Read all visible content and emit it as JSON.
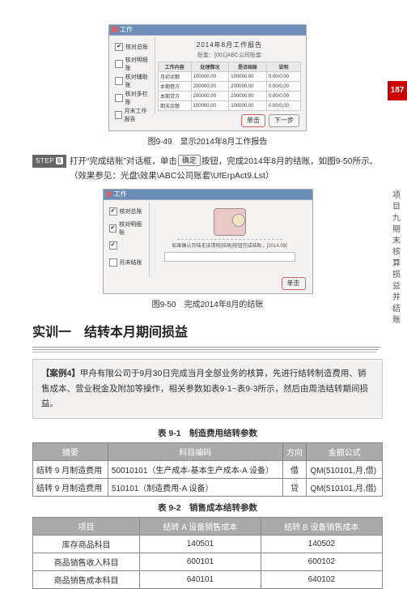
{
  "pageNumber": "187",
  "sideLabel": "项目九　期末核算损益并结账",
  "shot1": {
    "title": "工作",
    "header": "2014年8月工作报告",
    "sub": "账套：[001]ABC公司账套",
    "sidebar": [
      "核对总账",
      "核对明细账",
      "核对辅助账",
      "核对多栏账",
      "月末工作报告"
    ],
    "thead": [
      "工作内容",
      "处理情况",
      "是否结账",
      "说明"
    ],
    "rows": [
      [
        "月初余额",
        "100000.00",
        "100000.00",
        "0.00/0.00"
      ],
      [
        "本期借方",
        "200000.00",
        "200000.00",
        "0.00/0.00"
      ],
      [
        "本期贷方",
        "200000.00",
        "200000.00",
        "0.00/0.00"
      ],
      [
        "期末余额",
        "100000.00",
        "100000.00",
        "0.00/0.00"
      ]
    ],
    "btn1": "单击",
    "btn2": "下一步"
  },
  "caption1": "图9-49　显示2014年8月工作报告",
  "step6": {
    "tag": "STEP",
    "num": "6",
    "text1": "打开“完成结账”对话框，单击",
    "inlineBtn": "确定",
    "text2": "按钮，完成2014年8月的结账，如图9-50所示。（效果参见：光盘\\效果\\ABC公司账套\\UfErpAct9.Lst）"
  },
  "shot2": {
    "title": "工作",
    "sidebar": [
      "核对总账",
      "核对明细账",
      "",
      "月末结账"
    ],
    "line1": "如果确认月结无误请按[结账]按钮完成结账，[2014.09]",
    "btn": "单击"
  },
  "caption2": "图9-50　完成2014年8月的结账",
  "trainingTitle": "实训一　结转本月期间损益",
  "case": {
    "tag": "【案例4】",
    "text": "甲舟有限公司于9月30日完成当月全部业务的核算，先进行结转制造费用、销售成本、营业税金及附加等操作，相关参数如表9-1~表9-3所示，然后由周浩结转期间损益。"
  },
  "t1": {
    "cap": "表 9-1　制造费用结转参数",
    "head": [
      "摘要",
      "科目编码",
      "方向",
      "金额公式"
    ],
    "rows": [
      [
        "结转 9 月制造费用",
        "50010101（生产成本-基本生产成本-A 设备）",
        "借",
        "QM(510101,月,借)"
      ],
      [
        "结转 9 月制造费用",
        "510101（制造费用-A 设备）",
        "贷",
        "QM(510101,月,借)"
      ]
    ]
  },
  "t2": {
    "cap": "表 9-2　销售成本结转参数",
    "head": [
      "项目",
      "结转 A 设备销售成本",
      "结转 B 设备销售成本"
    ],
    "rows": [
      [
        "库存商品科目",
        "140501",
        "140502"
      ],
      [
        "商品销售收入科目",
        "600101",
        "600102"
      ],
      [
        "商品销售成本科目",
        "640101",
        "640102"
      ]
    ]
  }
}
